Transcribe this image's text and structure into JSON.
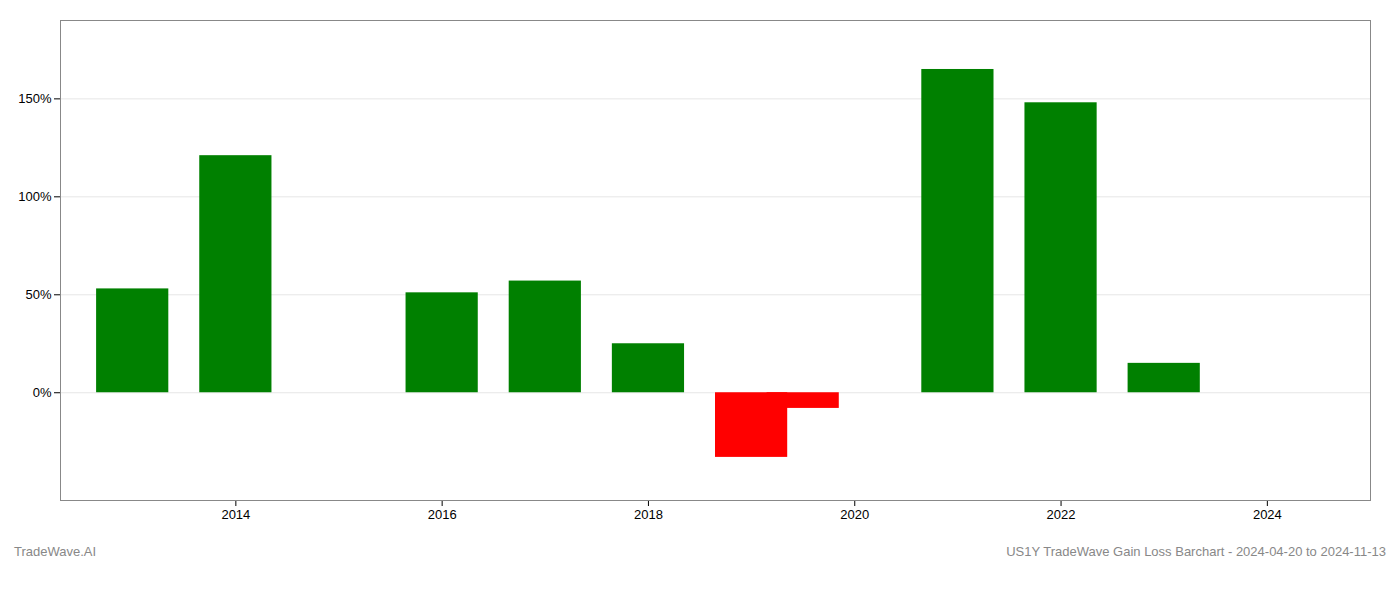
{
  "chart_data": {
    "type": "bar",
    "x": [
      2013,
      2014,
      2016,
      2017,
      2018,
      2019,
      2019.5,
      2021,
      2022,
      2023
    ],
    "values": [
      53.0,
      121.0,
      51.0,
      57.0,
      25.0,
      -33.0,
      -8.0,
      165.0,
      148.0,
      15.0
    ],
    "colors": [
      "#008000",
      "#008000",
      "#008000",
      "#008000",
      "#008000",
      "#ff0000",
      "#ff0000",
      "#008000",
      "#008000",
      "#008000"
    ],
    "xlim": [
      2012.3,
      2025.0
    ],
    "xticks": [
      2014,
      2016,
      2018,
      2020,
      2022,
      2024
    ],
    "ylim": [
      -55,
      190
    ],
    "yticks": [
      {
        "value": 0,
        "label": "0%"
      },
      {
        "value": 50,
        "label": "50%"
      },
      {
        "value": 100,
        "label": "100%"
      },
      {
        "value": 150,
        "label": "150%"
      }
    ],
    "grid": true,
    "annotations": [
      "TradeWave.AI",
      "US1Y TradeWave Gain Loss Barchart - 2024-04-20 to 2024-11-13"
    ]
  }
}
